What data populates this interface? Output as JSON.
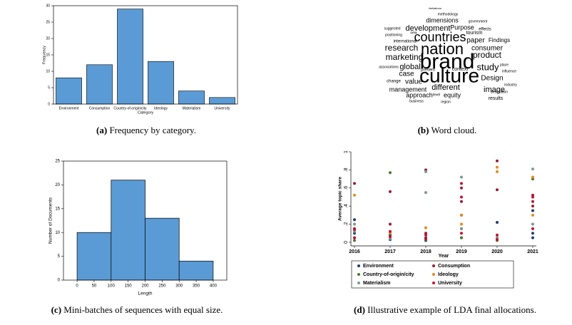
{
  "chart_data": [
    {
      "type": "bar",
      "caption_label": "(a)",
      "caption": "Frequency by category.",
      "categories": [
        "Environment",
        "Consumption",
        "Country-of-origin/city",
        "Ideology",
        "Materialism",
        "University"
      ],
      "values": [
        8,
        12,
        29,
        13,
        4,
        2
      ],
      "color": "#5b9bd5",
      "ylim": [
        0,
        30
      ],
      "yticks": [
        0,
        5,
        10,
        15,
        20,
        25,
        30
      ],
      "xlabel": "Category",
      "ylabel": "Frequency"
    },
    {
      "type": "wordcloud",
      "caption_label": "(b)",
      "caption": "Word cloud.",
      "words": [
        {
          "text": "brand",
          "size": 30,
          "color": "#e0602a"
        },
        {
          "text": "culture",
          "size": 28,
          "color": "#e0602a"
        },
        {
          "text": "nation",
          "size": 22,
          "color": "#e0602a"
        },
        {
          "text": "countries",
          "size": 18,
          "color": "#e0602a"
        },
        {
          "text": "research",
          "size": 12,
          "color": "#555555"
        },
        {
          "text": "development",
          "size": 11,
          "color": "#555555"
        },
        {
          "text": "marketing",
          "size": 12,
          "color": "#555555"
        },
        {
          "text": "study",
          "size": 13,
          "color": "#555555"
        },
        {
          "text": "product",
          "size": 12,
          "color": "#555555"
        },
        {
          "text": "consumer",
          "size": 10,
          "color": "#555555"
        },
        {
          "text": "global",
          "size": 11,
          "color": "#555555"
        },
        {
          "text": "paper",
          "size": 10,
          "color": "#555555"
        },
        {
          "text": "Findings",
          "size": 8,
          "color": "#555555"
        },
        {
          "text": "Purpose",
          "size": 9,
          "color": "#555555"
        },
        {
          "text": "dimensions",
          "size": 9,
          "color": "#555555"
        },
        {
          "text": "different",
          "size": 11,
          "color": "#555555"
        },
        {
          "text": "management",
          "size": 9,
          "color": "#555555"
        },
        {
          "text": "image",
          "size": 11,
          "color": "#555555"
        },
        {
          "text": "Design",
          "size": 10,
          "color": "#555555"
        },
        {
          "text": "case",
          "size": 10,
          "color": "#555555"
        },
        {
          "text": "value",
          "size": 10,
          "color": "#555555"
        },
        {
          "text": "approach",
          "size": 9,
          "color": "#555555"
        },
        {
          "text": "equity",
          "size": 9,
          "color": "#555555"
        },
        {
          "text": "results",
          "size": 7,
          "color": "#555555"
        },
        {
          "text": "tourism",
          "size": 7,
          "color": "#555555"
        },
        {
          "text": "context",
          "size": 7,
          "color": "#666666"
        },
        {
          "text": "present",
          "size": 6,
          "color": "#666666"
        },
        {
          "text": "international",
          "size": 6,
          "color": "#666666"
        },
        {
          "text": "methodology",
          "size": 5,
          "color": "#777777"
        },
        {
          "text": "industry",
          "size": 5,
          "color": "#777777"
        },
        {
          "text": "influence",
          "size": 5,
          "color": "#777777"
        },
        {
          "text": "level",
          "size": 5,
          "color": "#777777"
        },
        {
          "text": "region",
          "size": 5,
          "color": "#777777"
        },
        {
          "text": "business",
          "size": 5,
          "color": "#777777"
        },
        {
          "text": "effects",
          "size": 6,
          "color": "#666666"
        },
        {
          "text": "change",
          "size": 6,
          "color": "#666666"
        },
        {
          "text": "associations",
          "size": 5,
          "color": "#777777"
        },
        {
          "text": "suggested",
          "size": 5,
          "color": "#777777"
        },
        {
          "text": "positioning",
          "size": 5,
          "color": "#777777"
        },
        {
          "text": "new",
          "size": 5,
          "color": "#777777"
        },
        {
          "text": "limitations",
          "size": 4,
          "color": "#777777"
        },
        {
          "text": "government",
          "size": 5,
          "color": "#777777"
        },
        {
          "text": "place",
          "size": 5,
          "color": "#777777"
        },
        {
          "text": "destination",
          "size": 5,
          "color": "#777777"
        }
      ]
    },
    {
      "type": "histogram",
      "caption_label": "(c)",
      "caption": "Mini-batches of sequences with equal size.",
      "bins": [
        0,
        100,
        200,
        300,
        400
      ],
      "values": [
        10,
        21,
        13,
        4
      ],
      "color": "#5b9bd5",
      "xlim": [
        -40,
        440
      ],
      "xticks": [
        0,
        50,
        100,
        150,
        200,
        250,
        300,
        350,
        400
      ],
      "ylim": [
        0,
        25
      ],
      "yticks": [
        0,
        5,
        10,
        15,
        20,
        25
      ],
      "xlabel": "Length",
      "ylabel": "Number of Documents"
    },
    {
      "type": "scatter",
      "caption_label": "(d)",
      "caption": "Illustrative example of LDA final allocations.",
      "xlim": [
        2015.9,
        2021.1
      ],
      "xticks": [
        2016,
        2017,
        2018,
        2019,
        2020,
        2021
      ],
      "ylim": [
        -0.04,
        1.0
      ],
      "yticks": [
        0,
        {
          "value": 0.2,
          "label": ".2"
        },
        {
          "value": 0.4,
          "label": ".4"
        },
        {
          "value": 0.6,
          "label": ".6"
        },
        {
          "value": 0.8,
          "label": ".8"
        },
        1
      ],
      "xlabel": "Year",
      "ylabel": "Average topic share",
      "series": [
        {
          "name": "Environment",
          "color": "#1f3f6e",
          "x": [
            2016,
            2016,
            2016,
            2017,
            2017,
            2018,
            2018,
            2019,
            2019,
            2020,
            2020,
            2021,
            2021,
            2021
          ],
          "values": [
            0.25,
            0.1,
            0.05,
            0.08,
            0.03,
            0.05,
            0.02,
            0.15,
            0.05,
            0.22,
            0.05,
            0.35,
            0.1,
            0.05
          ]
        },
        {
          "name": "Consumption",
          "color": "#9b1b3a",
          "x": [
            2016,
            2016,
            2017,
            2017,
            2018,
            2018,
            2019,
            2019,
            2019,
            2020,
            2020,
            2021,
            2021
          ],
          "values": [
            0.65,
            0.15,
            0.56,
            0.2,
            0.8,
            0.1,
            0.6,
            0.45,
            0.3,
            0.9,
            0.58,
            0.52,
            0.4
          ]
        },
        {
          "name": "Country-of-origin/city",
          "color": "#4a7a2a",
          "x": [
            2016,
            2017,
            2018,
            2019,
            2020,
            2021
          ],
          "values": [
            0.02,
            0.77,
            0.03,
            0.05,
            0.02,
            0.7
          ]
        },
        {
          "name": "Ideology",
          "color": "#e8891c",
          "x": [
            2016,
            2017,
            2018,
            2019,
            2019,
            2020,
            2020,
            2021,
            2021
          ],
          "values": [
            0.52,
            0.1,
            0.16,
            0.3,
            0.2,
            0.83,
            0.78,
            0.72,
            0.3
          ]
        },
        {
          "name": "Materialism",
          "color": "#7a9a8e",
          "x": [
            2016,
            2016,
            2017,
            2018,
            2018,
            2019,
            2019,
            2020,
            2021,
            2021
          ],
          "values": [
            0.2,
            0.12,
            0.04,
            0.55,
            0.78,
            0.72,
            0.15,
            0.05,
            0.81,
            0.2
          ]
        },
        {
          "name": "University",
          "color": "#c8102e",
          "x": [
            2016,
            2016,
            2017,
            2017,
            2018,
            2018,
            2019,
            2019,
            2019,
            2020,
            2020,
            2021,
            2021,
            2021
          ],
          "values": [
            0.14,
            0.05,
            0.12,
            0.06,
            0.08,
            0.04,
            0.65,
            0.5,
            0.1,
            0.08,
            0.03,
            0.5,
            0.45,
            0.15
          ]
        }
      ]
    }
  ]
}
